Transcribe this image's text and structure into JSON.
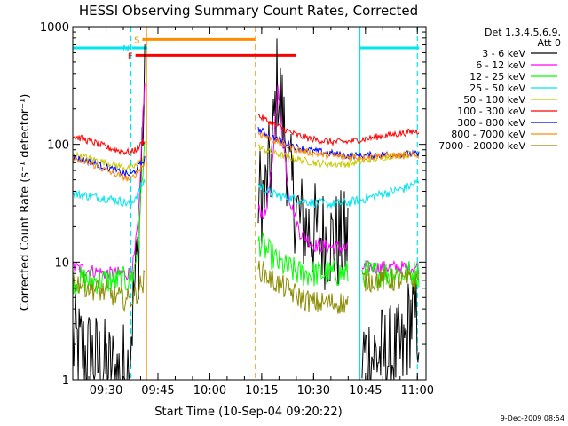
{
  "chart_data": {
    "type": "line",
    "title": "HESSI Observing Summary Count Rates, Corrected",
    "xlabel": "Start Time (10-Sep-04 09:20:22)",
    "ylabel": "Corrected Count Rate (s⁻¹ detector⁻¹)",
    "y_scale": "log",
    "ylim": [
      1,
      1000
    ],
    "xlim_minutes": [
      20.37,
      122.5
    ],
    "x_ticks": [
      {
        "minute": 30,
        "label": "09:30"
      },
      {
        "minute": 45,
        "label": "09:45"
      },
      {
        "minute": 60,
        "label": "10:00"
      },
      {
        "minute": 75,
        "label": "10:15"
      },
      {
        "minute": 90,
        "label": "10:30"
      },
      {
        "minute": 105,
        "label": "10:45"
      },
      {
        "minute": 120,
        "label": "11:00"
      }
    ],
    "y_ticks": [
      {
        "value": 1,
        "label": "1"
      },
      {
        "value": 10,
        "label": "10"
      },
      {
        "value": 100,
        "label": "100"
      },
      {
        "value": 1000,
        "label": "1000"
      }
    ],
    "legend": {
      "placement": "top-right",
      "header": [
        "Det 1,3,4,5,6,9,",
        "Att 0"
      ]
    },
    "bars": [
      {
        "label": "S",
        "color": "#ff8c00",
        "start": 40.5,
        "end": 73.0,
        "value": 780
      },
      {
        "label": "N",
        "color": "#00e5ee",
        "start": 37.5,
        "end": 42.0,
        "value": 660
      },
      {
        "label": "F",
        "color": "#ff0000",
        "start": 38.5,
        "end": 85.0,
        "value": 570
      }
    ],
    "day_night_bar": {
      "color": "#00e5ee",
      "value": 660,
      "segments": [
        [
          20.4,
          37.0
        ],
        [
          103.5,
          120.5
        ]
      ]
    },
    "vlines": [
      {
        "minute": 37.2,
        "color": "#00e5ee",
        "style": "dashed"
      },
      {
        "minute": 41.7,
        "color": "#ff8c00",
        "style": "solid"
      },
      {
        "minute": 73.2,
        "color": "#ff8c00",
        "style": "dashed"
      },
      {
        "minute": 103.4,
        "color": "#00e5ee",
        "style": "solid"
      },
      {
        "minute": 120.0,
        "color": "#00e5ee",
        "style": "dashed"
      }
    ],
    "series": [
      {
        "name": "3 - 6 keV",
        "color": "#000000",
        "noise": 0.45,
        "points": [
          [
            20.4,
            2.0
          ],
          [
            26,
            1.5
          ],
          [
            30,
            1.2
          ],
          [
            34,
            1.1
          ],
          [
            36.5,
            1.3
          ],
          [
            38,
            5
          ],
          [
            39.5,
            14
          ],
          [
            40.5,
            120
          ],
          [
            41.2,
            280
          ],
          [
            41.7,
            null
          ],
          [
            73.5,
            null
          ],
          [
            74,
            40
          ],
          [
            76,
            35
          ],
          [
            78,
            80
          ],
          [
            79.5,
            360
          ],
          [
            81,
            180
          ],
          [
            83,
            50
          ],
          [
            86,
            22
          ],
          [
            90,
            18
          ],
          [
            95,
            15
          ],
          [
            100,
            15
          ],
          [
            101,
            null
          ],
          [
            103.5,
            null
          ],
          [
            104,
            1.6
          ],
          [
            110,
            1.6
          ],
          [
            116,
            1.6
          ],
          [
            117,
            2.5
          ],
          [
            118,
            3.5
          ],
          [
            120.5,
            3
          ]
        ]
      },
      {
        "name": "6 - 12 keV",
        "color": "#ff00ff",
        "noise": 0.06,
        "points": [
          [
            20.4,
            9
          ],
          [
            30,
            8
          ],
          [
            36.5,
            8
          ],
          [
            38,
            10
          ],
          [
            39.5,
            25
          ],
          [
            40.5,
            150
          ],
          [
            41.2,
            320
          ],
          [
            41.7,
            null
          ],
          [
            73.5,
            null
          ],
          [
            74,
            28
          ],
          [
            76,
            25
          ],
          [
            78,
            60
          ],
          [
            79.5,
            320
          ],
          [
            81,
            120
          ],
          [
            83,
            35
          ],
          [
            86,
            18
          ],
          [
            90,
            14
          ],
          [
            100,
            13
          ],
          [
            101,
            null
          ],
          [
            103.5,
            null
          ],
          [
            104,
            9
          ],
          [
            110,
            9
          ],
          [
            120.5,
            9
          ]
        ]
      },
      {
        "name": "12 - 25 keV",
        "color": "#00ff00",
        "noise": 0.12,
        "points": [
          [
            20.4,
            7
          ],
          [
            30,
            7
          ],
          [
            36.5,
            7
          ],
          [
            38,
            8
          ],
          [
            39.5,
            15
          ],
          [
            40.5,
            60
          ],
          [
            41.2,
            90
          ],
          [
            41.7,
            null
          ],
          [
            73.5,
            null
          ],
          [
            74,
            15
          ],
          [
            77,
            12
          ],
          [
            79.5,
            10
          ],
          [
            82,
            9
          ],
          [
            86,
            8
          ],
          [
            90,
            8
          ],
          [
            100,
            8
          ],
          [
            101,
            null
          ],
          [
            103.5,
            null
          ],
          [
            104,
            8
          ],
          [
            110,
            8
          ],
          [
            120.5,
            8
          ]
        ]
      },
      {
        "name": "25 - 50 keV",
        "color": "#00e5ee",
        "noise": 0.04,
        "points": [
          [
            20.4,
            38
          ],
          [
            26,
            36
          ],
          [
            30,
            35
          ],
          [
            34,
            33
          ],
          [
            37.2,
            31
          ],
          [
            39.5,
            40
          ],
          [
            41.2,
            50
          ],
          [
            41.7,
            null
          ],
          [
            73.5,
            null
          ],
          [
            74,
            45
          ],
          [
            78,
            38
          ],
          [
            85,
            34
          ],
          [
            90,
            32
          ],
          [
            95,
            31
          ],
          [
            100,
            32
          ],
          [
            104,
            34
          ],
          [
            110,
            38
          ],
          [
            116,
            42
          ],
          [
            120.5,
            48
          ]
        ]
      },
      {
        "name": "50 - 100 keV",
        "color": "#c8c800",
        "noise": 0.03,
        "points": [
          [
            20.4,
            82
          ],
          [
            26,
            75
          ],
          [
            30,
            70
          ],
          [
            34,
            65
          ],
          [
            37.2,
            62
          ],
          [
            39.5,
            70
          ],
          [
            41.2,
            80
          ],
          [
            41.7,
            null
          ],
          [
            73.5,
            null
          ],
          [
            74,
            95
          ],
          [
            78,
            85
          ],
          [
            85,
            75
          ],
          [
            90,
            70
          ],
          [
            95,
            68
          ],
          [
            100,
            68
          ],
          [
            104,
            72
          ],
          [
            110,
            78
          ],
          [
            116,
            82
          ],
          [
            120.5,
            85
          ]
        ]
      },
      {
        "name": "100 - 300 keV",
        "color": "#ff0000",
        "noise": 0.03,
        "points": [
          [
            20.4,
            118
          ],
          [
            26,
            105
          ],
          [
            30,
            95
          ],
          [
            34,
            88
          ],
          [
            37.2,
            85
          ],
          [
            39.5,
            95
          ],
          [
            41.2,
            110
          ],
          [
            41.7,
            null
          ],
          [
            73.5,
            null
          ],
          [
            74,
            175
          ],
          [
            78,
            150
          ],
          [
            85,
            120
          ],
          [
            90,
            110
          ],
          [
            95,
            105
          ],
          [
            100,
            105
          ],
          [
            104,
            110
          ],
          [
            110,
            118
          ],
          [
            116,
            125
          ],
          [
            120.5,
            130
          ]
        ]
      },
      {
        "name": "300 - 800 keV",
        "color": "#0000ff",
        "noise": 0.03,
        "points": [
          [
            20.4,
            78
          ],
          [
            26,
            70
          ],
          [
            30,
            64
          ],
          [
            34,
            58
          ],
          [
            37.2,
            55
          ],
          [
            39.5,
            65
          ],
          [
            41.2,
            75
          ],
          [
            41.7,
            null
          ],
          [
            73.5,
            null
          ],
          [
            74,
            135
          ],
          [
            78,
            115
          ],
          [
            85,
            95
          ],
          [
            90,
            88
          ],
          [
            95,
            84
          ],
          [
            100,
            80
          ],
          [
            104,
            80
          ],
          [
            110,
            82
          ],
          [
            116,
            83
          ],
          [
            120.5,
            82
          ]
        ]
      },
      {
        "name": "800 - 7000 keV",
        "color": "#ff8c00",
        "noise": 0.03,
        "points": [
          [
            20.4,
            75
          ],
          [
            26,
            68
          ],
          [
            30,
            60
          ],
          [
            34,
            54
          ],
          [
            37.2,
            50
          ],
          [
            39.5,
            60
          ],
          [
            41.2,
            70
          ],
          [
            41.7,
            null
          ],
          [
            73.5,
            null
          ],
          [
            74,
            125
          ],
          [
            78,
            110
          ],
          [
            85,
            90
          ],
          [
            90,
            84
          ],
          [
            95,
            80
          ],
          [
            100,
            78
          ],
          [
            104,
            78
          ],
          [
            110,
            80
          ],
          [
            116,
            80
          ],
          [
            120.5,
            80
          ]
        ]
      },
      {
        "name": "7000 - 20000 keV",
        "color": "#8b8b00",
        "noise": 0.1,
        "points": [
          [
            20.4,
            7
          ],
          [
            26,
            6
          ],
          [
            30,
            5.5
          ],
          [
            34,
            5
          ],
          [
            36.5,
            4.8
          ],
          [
            38,
            5
          ],
          [
            39.5,
            6
          ],
          [
            41.2,
            7
          ],
          [
            41.7,
            null
          ],
          [
            73.5,
            null
          ],
          [
            74,
            9
          ],
          [
            78,
            7
          ],
          [
            82,
            6
          ],
          [
            86,
            5
          ],
          [
            90,
            4.5
          ],
          [
            100,
            4.5
          ],
          [
            101,
            null
          ],
          [
            103.5,
            null
          ],
          [
            104,
            7
          ],
          [
            110,
            7
          ],
          [
            120.5,
            7
          ]
        ]
      }
    ]
  },
  "footer": {
    "timestamp": "9-Dec-2009 08:54"
  }
}
